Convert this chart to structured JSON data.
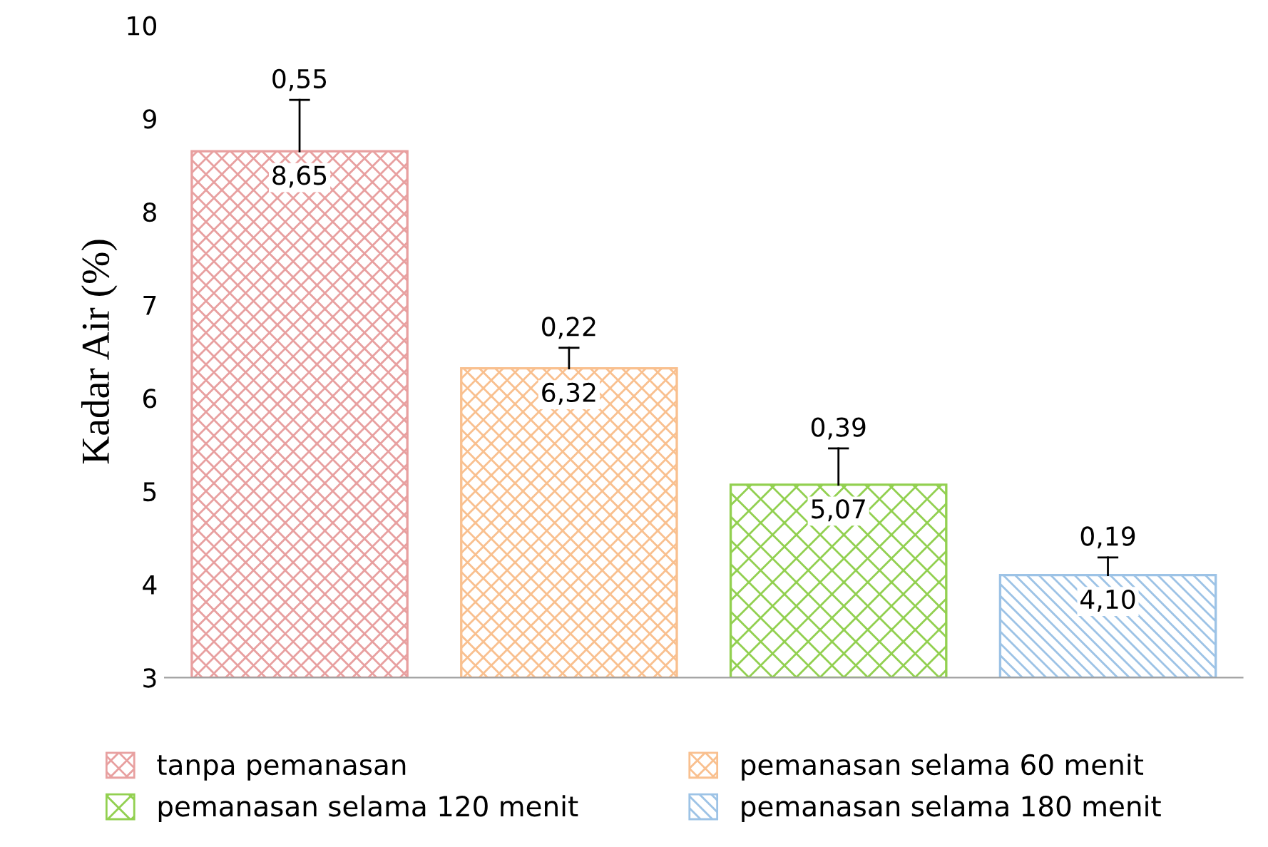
{
  "chart_data": {
    "type": "bar",
    "ylabel": "Kadar Air (%)",
    "categories": [
      null,
      null,
      null,
      null
    ],
    "series": [
      {
        "name": "tanpa pemanasan",
        "color": "#e8a0a0",
        "values": [
          8.65,
          null,
          null,
          null
        ],
        "errors": [
          [
            8.65,
            9.2
          ],
          null,
          null,
          null
        ],
        "value_labels": [
          "8,65",
          null,
          null,
          null
        ]
      },
      {
        "name": "pemanasan selama 60 menit",
        "color": "#f9c08f",
        "values": [
          null,
          6.32,
          null,
          null
        ],
        "errors": [
          null,
          [
            6.32,
            6.54
          ],
          null,
          null
        ],
        "value_labels": [
          null,
          "6,32",
          null,
          null
        ]
      },
      {
        "name": "pemanasan selama 120 menit",
        "color": "#92d050",
        "values": [
          null,
          null,
          5.07,
          null
        ],
        "errors": [
          null,
          null,
          [
            5.07,
            5.46
          ],
          null
        ],
        "value_labels": [
          null,
          null,
          "5,07",
          null
        ]
      },
      {
        "name": "pemanasan selama 180 menit",
        "color": "#9dc3e6",
        "values": [
          null,
          null,
          null,
          4.1
        ],
        "errors": [
          null,
          null,
          null,
          [
            4.1,
            4.29
          ]
        ],
        "value_labels": [
          null,
          null,
          null,
          "4,10"
        ]
      }
    ],
    "annotations": [
      "0,55",
      "0,22",
      "0,39",
      "0,19"
    ],
    "ylim": [
      3,
      10
    ],
    "yticks": [
      3,
      4,
      5,
      6,
      7,
      8,
      9,
      10
    ],
    "grid": false,
    "legend": "bottom"
  }
}
